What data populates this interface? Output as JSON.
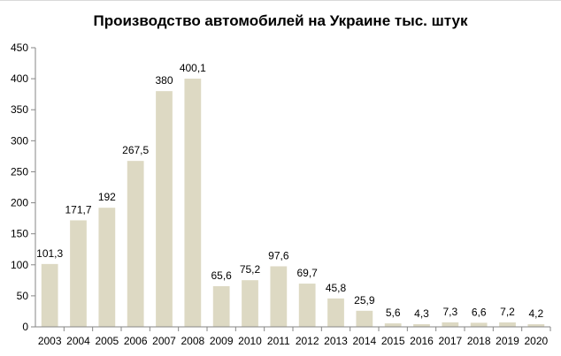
{
  "chart_data": {
    "type": "bar",
    "title": "Производство  автомобилей на Украине тыс. штук",
    "xlabel": "",
    "ylabel": "",
    "ylim": [
      0,
      450
    ],
    "yticks": [
      "0",
      "50",
      "100",
      "150",
      "200",
      "250",
      "300",
      "350",
      "400",
      "450"
    ],
    "grid": false,
    "legend": "none",
    "categories": [
      "2003",
      "2004",
      "2005",
      "2006",
      "2007",
      "2008",
      "2009",
      "2010",
      "2011",
      "2012",
      "2013",
      "2014",
      "2015",
      "2016",
      "2017",
      "2018",
      "2019",
      "2020"
    ],
    "values": [
      101.3,
      171.7,
      192,
      267.5,
      380,
      400.1,
      65.6,
      75.2,
      97.6,
      69.7,
      45.8,
      25.9,
      5.6,
      4.3,
      7.3,
      6.6,
      7.2,
      4.2
    ],
    "labels": [
      "101,3",
      "171,7",
      "192",
      "267,5",
      "380",
      "400,1",
      "65,6",
      "75,2",
      "97,6",
      "69,7",
      "45,8",
      "25,9",
      "5,6",
      "4,3",
      "7,3",
      "6,6",
      "7,2",
      "4,2"
    ],
    "colors": {
      "bar": "#ddd9c3",
      "axis": "#868686",
      "text": "#000000"
    }
  }
}
